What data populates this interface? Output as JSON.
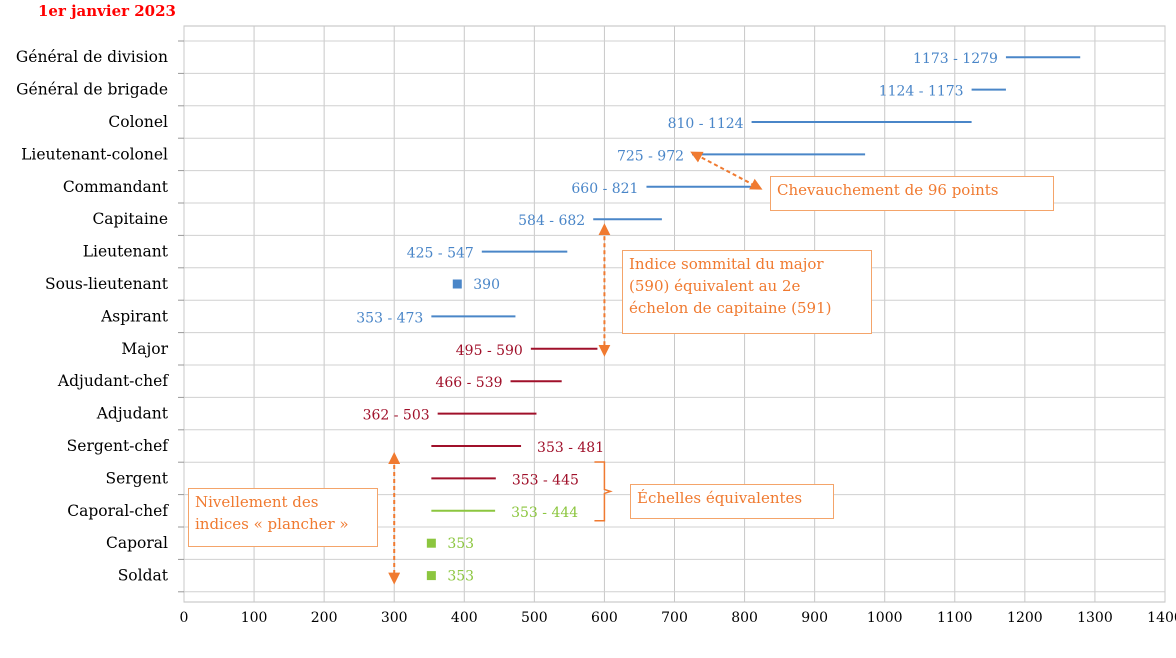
{
  "date_label": "1er janvier 2023",
  "chart_data": {
    "type": "range-bar",
    "title": "",
    "xlabel": "",
    "ylabel": "",
    "xlim": [
      0,
      1400
    ],
    "xticks": [
      0,
      100,
      200,
      300,
      400,
      500,
      600,
      700,
      800,
      900,
      1000,
      1100,
      1200,
      1300,
      1400
    ],
    "grid": true,
    "categories": [
      {
        "name": "Général de division",
        "min": 1173,
        "max": 1279,
        "label": "1173 - 1279",
        "color": "#4a86c8",
        "marker": false
      },
      {
        "name": "Général de brigade",
        "min": 1124,
        "max": 1173,
        "label": "1124 - 1173",
        "color": "#4a86c8",
        "marker": false
      },
      {
        "name": "Colonel",
        "min": 810,
        "max": 1124,
        "label": "810 - 1124",
        "color": "#4a86c8",
        "marker": false
      },
      {
        "name": "Lieutenant-colonel",
        "min": 725,
        "max": 972,
        "label": "725 - 972",
        "color": "#4a86c8",
        "marker": false
      },
      {
        "name": "Commandant",
        "min": 660,
        "max": 821,
        "label": "660 - 821",
        "color": "#4a86c8",
        "marker": false
      },
      {
        "name": "Capitaine",
        "min": 584,
        "max": 682,
        "label": "584 - 682",
        "color": "#4a86c8",
        "marker": false
      },
      {
        "name": "Lieutenant",
        "min": 425,
        "max": 547,
        "label": "425 - 547",
        "color": "#4a86c8",
        "marker": false
      },
      {
        "name": "Sous-lieutenant",
        "min": 390,
        "max": 390,
        "label": "390",
        "color": "#4a86c8",
        "marker": true
      },
      {
        "name": "Aspirant",
        "min": 353,
        "max": 473,
        "label": "353 - 473",
        "color": "#4a86c8",
        "marker": false
      },
      {
        "name": "Major",
        "min": 495,
        "max": 590,
        "label": "495 - 590",
        "color": "#a0102a",
        "marker": false
      },
      {
        "name": "Adjudant-chef",
        "min": 466,
        "max": 539,
        "label": "466 - 539",
        "color": "#a0102a",
        "marker": false
      },
      {
        "name": "Adjudant",
        "min": 362,
        "max": 503,
        "label": "362 - 503",
        "color": "#a0102a",
        "marker": false
      },
      {
        "name": "Sergent-chef",
        "min": 353,
        "max": 481,
        "label": "353 - 481",
        "color": "#a0102a",
        "marker": false
      },
      {
        "name": "Sergent",
        "min": 353,
        "max": 445,
        "label": "353 - 445",
        "color": "#a0102a",
        "marker": false
      },
      {
        "name": "Caporal-chef",
        "min": 353,
        "max": 444,
        "label": "353 - 444",
        "color": "#8cc63f",
        "marker": false
      },
      {
        "name": "Caporal",
        "min": 353,
        "max": 353,
        "label": "353",
        "color": "#8cc63f",
        "marker": true
      },
      {
        "name": "Soldat",
        "min": 353,
        "max": 353,
        "label": "353",
        "color": "#8cc63f",
        "marker": true
      }
    ],
    "annotations": [
      {
        "text": "Chevauchement de 96 points"
      },
      {
        "text_lines": [
          "Indice sommital du major",
          "(590) équivalent au 2e",
          "échelon de capitaine (591)"
        ]
      },
      {
        "text": "Échelles équivalentes"
      },
      {
        "text_lines": [
          "Nivellement des",
          "indices « plancher »"
        ]
      }
    ],
    "annotation_color": "#f07a30"
  }
}
